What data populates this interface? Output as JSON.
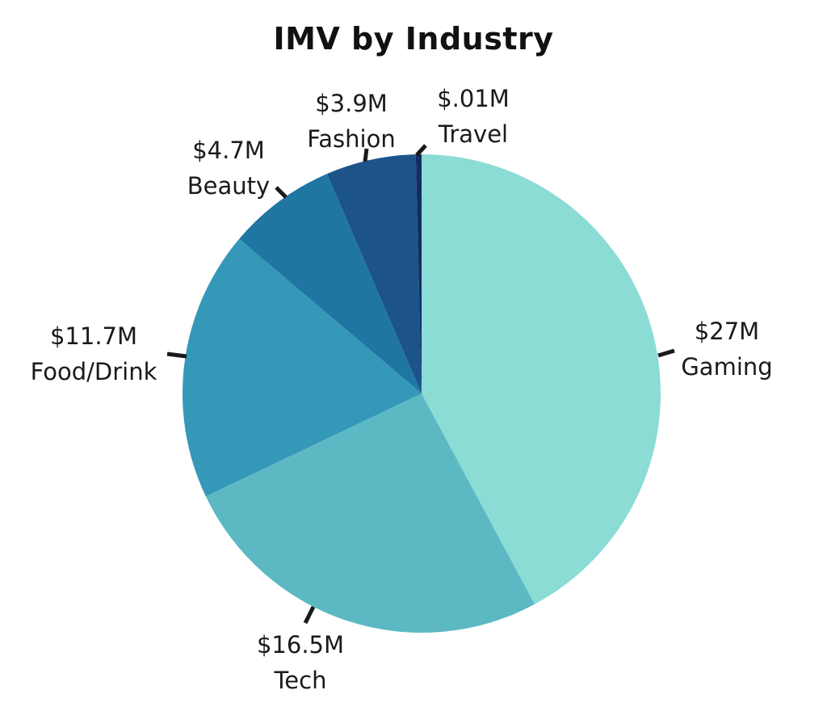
{
  "chart_data": {
    "type": "pie",
    "title": "IMV by Industry",
    "slices": [
      {
        "category": "Gaming",
        "value": 27,
        "value_label": "$27M",
        "color": "#8adcd5"
      },
      {
        "category": "Tech",
        "value": 16.5,
        "value_label": "$16.5M",
        "color": "#5cb9c4"
      },
      {
        "category": "Food/Drink",
        "value": 11.7,
        "value_label": "$11.7M",
        "color": "#3598b9"
      },
      {
        "category": "Beauty",
        "value": 4.7,
        "value_label": "$4.7M",
        "color": "#1f76a2"
      },
      {
        "category": "Fashion",
        "value": 3.9,
        "value_label": "$3.9M",
        "color": "#1c5489"
      },
      {
        "category": "Travel",
        "value": 0.01,
        "value_label": "$.01M",
        "color": "#152b66"
      }
    ],
    "legend": "none"
  }
}
